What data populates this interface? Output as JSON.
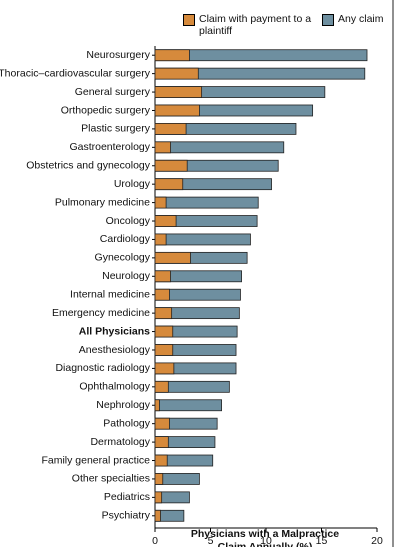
{
  "chart_data": {
    "type": "bar",
    "orientation": "horizontal",
    "x_label": "Physicians with a Malpractice Claim Annually (%)",
    "categories": [
      "Neurosurgery",
      "Thoracic–cardiovascular surgery",
      "General surgery",
      "Orthopedic surgery",
      "Plastic surgery",
      "Gastroenterology",
      "Obstetrics and gynecology",
      "Urology",
      "Pulmonary medicine",
      "Oncology",
      "Cardiology",
      "Gynecology",
      "Neurology",
      "Internal medicine",
      "Emergency medicine",
      "All Physicians",
      "Anesthesiology",
      "Diagnostic radiology",
      "Ophthalmology",
      "Nephrology",
      "Pathology",
      "Dermatology",
      "Family general practice",
      "Other specialties",
      "Pediatrics",
      "Psychiatry"
    ],
    "emphasized": [
      15
    ],
    "series": [
      {
        "name": "Any claim",
        "color": "#6e8fa0",
        "values": [
          19.1,
          18.9,
          15.3,
          14.2,
          12.7,
          11.6,
          11.1,
          10.5,
          9.3,
          9.2,
          8.6,
          8.3,
          7.8,
          7.7,
          7.6,
          7.4,
          7.3,
          7.3,
          6.7,
          6.0,
          5.6,
          5.4,
          5.2,
          4.0,
          3.1,
          2.6
        ]
      },
      {
        "name": "Claim with payment to a plaintiff",
        "color": "#d68a3c",
        "values": [
          3.1,
          3.9,
          4.2,
          4.0,
          2.8,
          1.4,
          2.9,
          2.5,
          1.0,
          1.9,
          1.0,
          3.2,
          1.4,
          1.3,
          1.5,
          1.6,
          1.6,
          1.7,
          1.2,
          0.4,
          1.3,
          1.2,
          1.1,
          0.7,
          0.6,
          0.5
        ]
      }
    ],
    "xlim": [
      0,
      20
    ],
    "xticks": [
      0,
      5,
      10,
      15,
      20
    ]
  }
}
